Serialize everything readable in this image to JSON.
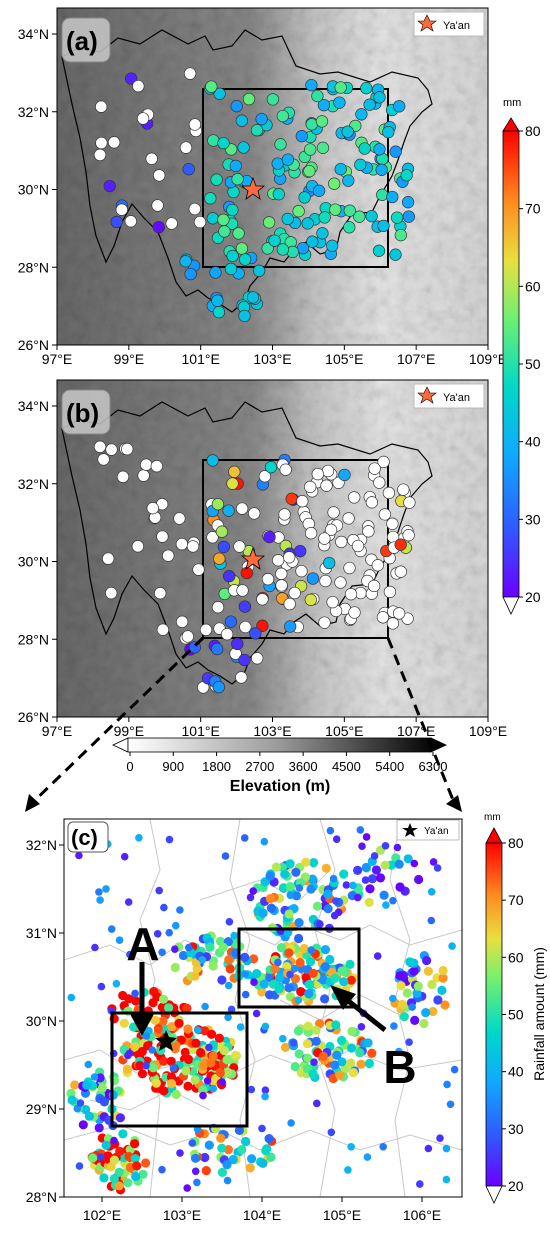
{
  "legend_label": "Ya'an",
  "panels": {
    "a": {
      "label": "(a)"
    },
    "b": {
      "label": "(b)"
    },
    "c": {
      "label": "(c)"
    }
  },
  "ab_axes": {
    "x_ticks": [
      "97°E",
      "99°E",
      "101°E",
      "103°E",
      "105°E",
      "107°E",
      "109°E"
    ],
    "y_ticks": [
      "26°N",
      "28°N",
      "30°N",
      "32°N",
      "34°N"
    ]
  },
  "c_axes": {
    "x_ticks": [
      "102°E",
      "103°E",
      "104°E",
      "105°E",
      "106°E"
    ],
    "y_ticks": [
      "28°N",
      "29°N",
      "30°N",
      "31°N",
      "32°N"
    ]
  },
  "colorbar_top": {
    "unit": "mm",
    "ticks": [
      "20",
      "30",
      "40",
      "50",
      "60",
      "70",
      "80"
    ]
  },
  "colorbar_bottom": {
    "unit": "mm",
    "label": "Rainfall amount (mm)",
    "ticks": [
      "20",
      "30",
      "40",
      "50",
      "60",
      "70",
      "80"
    ]
  },
  "elevation_bar": {
    "label": "Elevation (m)",
    "ticks": [
      "0",
      "900",
      "1800",
      "2700",
      "3600",
      "4500",
      "5400",
      "6300"
    ]
  },
  "region_labels": {
    "a": "A",
    "b": "B"
  },
  "colors": {
    "rain_low": "#6a00ff",
    "rain_mid": "#00d8c8",
    "rain_high": "#ff0000",
    "frame": "#000000",
    "star_ab": "#ff6a3d"
  }
}
